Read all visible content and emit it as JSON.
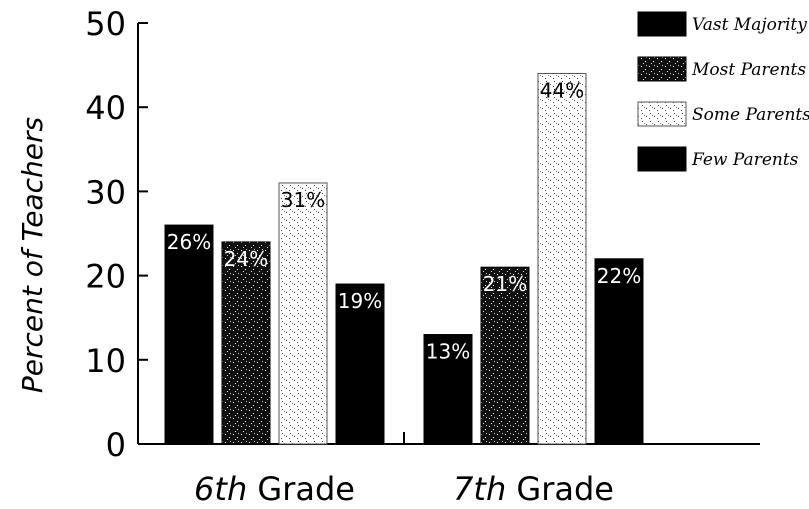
{
  "chart_data": {
    "type": "bar",
    "title": "",
    "xlabel": "",
    "ylabel": "Percent of Teachers",
    "ylim": [
      0,
      50
    ],
    "yticks": [
      0,
      10,
      20,
      30,
      40,
      50
    ],
    "legend_position": "top-right",
    "categories": [
      {
        "ordinal": "6th",
        "suffix": " Grade"
      },
      {
        "ordinal": "7th",
        "suffix": " Grade"
      }
    ],
    "series": [
      {
        "name": "Vast Majority",
        "values": [
          26,
          13
        ],
        "labels": [
          "26%",
          "13%"
        ],
        "color": "#000000",
        "pattern": "solid"
      },
      {
        "name": "Most Parents",
        "values": [
          24,
          21
        ],
        "labels": [
          "24%",
          "21%"
        ],
        "color": "#1a1a1a",
        "pattern": "dark-speckle"
      },
      {
        "name": "Some Parents",
        "values": [
          31,
          44
        ],
        "labels": [
          "31%",
          "44%"
        ],
        "color": "#f2f2f2",
        "pattern": "light-speckle"
      },
      {
        "name": "Few Parents",
        "values": [
          19,
          22
        ],
        "labels": [
          "19%",
          "22%"
        ],
        "color": "#000000",
        "pattern": "solid"
      }
    ]
  }
}
